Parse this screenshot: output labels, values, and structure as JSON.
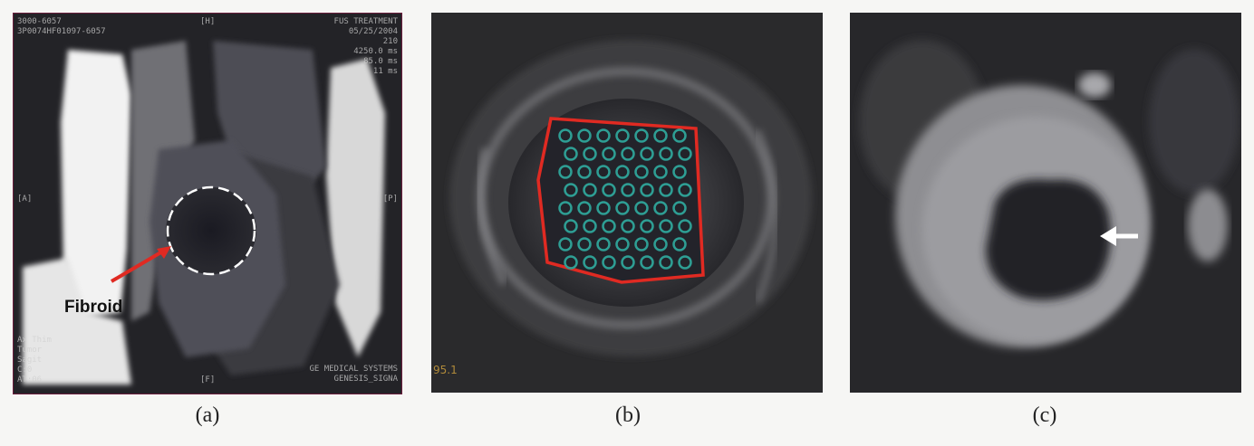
{
  "panels": [
    {
      "id": "a",
      "caption": "(a)",
      "label": "Fibroid"
    },
    {
      "id": "b",
      "caption": "(b)",
      "slice_label": "95.1"
    },
    {
      "id": "c",
      "caption": "(c)"
    }
  ],
  "overlay_a": {
    "top_left": [
      "3000-6057",
      "3P0074HF01097-6057"
    ],
    "top_right": [
      "FUS TREATMENT",
      "05/25/2004",
      "210",
      "4250.0 ms",
      "85.0 ms",
      "11 ms"
    ],
    "bottom_left": [
      "Ax Thim",
      "Tumor",
      "Sagit",
      "C:0",
      "AT:06"
    ],
    "bottom_right": [
      "GE MEDICAL SYSTEMS",
      "GENESIS_SIGNA"
    ],
    "markers": [
      "[H]",
      "[A]",
      "[P]",
      "[F]"
    ]
  },
  "colors": {
    "roi_outline": "#e02a22",
    "sonication_spots": "#2e9e94",
    "arrow": "#ffffff",
    "frame": "#6a1e3c"
  }
}
